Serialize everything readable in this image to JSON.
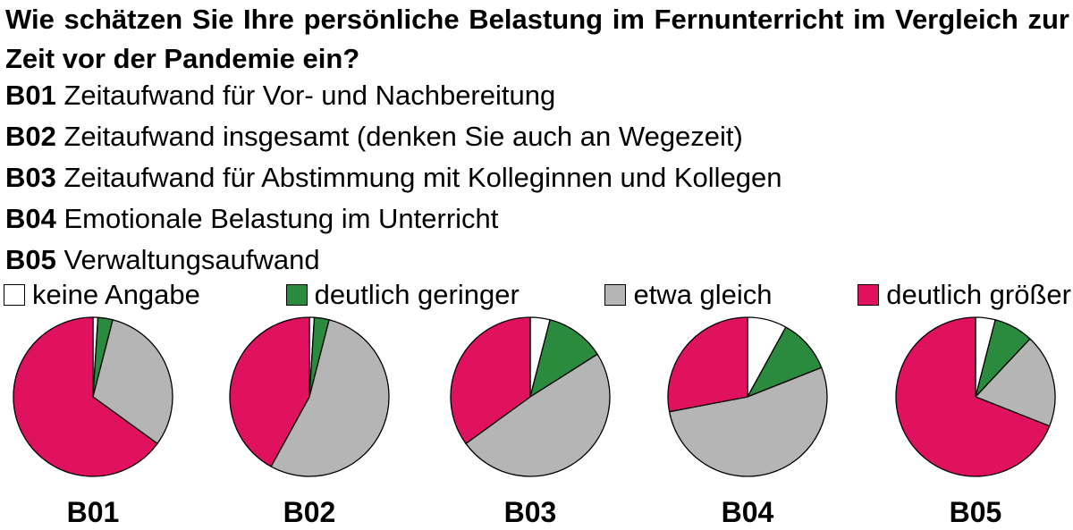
{
  "question": "Wie schätzen Sie Ihre persönliche Belastung im Fernunterricht im Vergleich zur Zeit vor der Pandemie ein?",
  "items": [
    {
      "code": "B01",
      "text": "Zeitaufwand für Vor- und Nachbereitung"
    },
    {
      "code": "B02",
      "text": "Zeitaufwand insgesamt (denken Sie auch an Wegezeit)"
    },
    {
      "code": "B03",
      "text": "Zeitaufwand für Abstimmung mit Kolleginnen und Kollegen"
    },
    {
      "code": "B04",
      "text": "Emotionale Belastung im Unterricht"
    },
    {
      "code": "B05",
      "text": "Verwaltungsaufwand"
    }
  ],
  "legend": [
    {
      "label": "keine Angabe",
      "color": "#ffffff"
    },
    {
      "label": "deutlich geringer",
      "color": "#2a8a3e"
    },
    {
      "label": "etwa gleich",
      "color": "#b5b5b5"
    },
    {
      "label": "deutlich größer",
      "color": "#e0115f"
    }
  ],
  "chart_data": {
    "type": "pie",
    "categories": [
      "keine Angabe",
      "deutlich geringer",
      "etwa gleich",
      "deutlich größer"
    ],
    "pies": [
      {
        "label": "B01",
        "values": [
          1,
          3,
          31,
          65
        ]
      },
      {
        "label": "B02",
        "values": [
          1,
          3,
          54,
          42
        ]
      },
      {
        "label": "B03",
        "values": [
          4,
          12,
          49,
          35
        ]
      },
      {
        "label": "B04",
        "values": [
          8,
          11,
          53,
          28
        ]
      },
      {
        "label": "B05",
        "values": [
          4,
          8,
          19,
          69
        ]
      }
    ]
  }
}
